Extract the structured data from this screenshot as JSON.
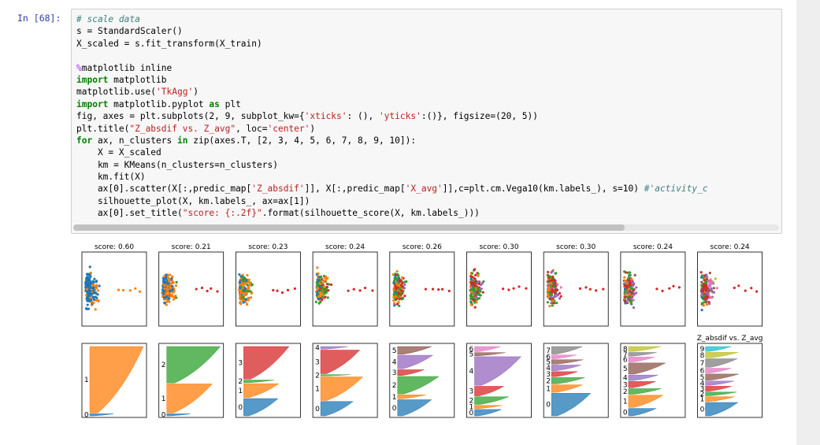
{
  "cell": {
    "prompt": "In [68]:"
  },
  "code_lines": [
    [
      {
        "t": "# scale data",
        "c": "cm"
      }
    ],
    [
      {
        "t": "s = StandardScaler()",
        "c": ""
      }
    ],
    [
      {
        "t": "X_scaled = s.fit_transform(X_train)",
        "c": ""
      }
    ],
    [
      {
        "t": "",
        "c": ""
      }
    ],
    [
      {
        "t": "%",
        "c": "mg"
      },
      {
        "t": "matplotlib inline",
        "c": ""
      }
    ],
    [
      {
        "t": "import",
        "c": "kw"
      },
      {
        "t": " matplotlib",
        "c": ""
      }
    ],
    [
      {
        "t": "matplotlib.use(",
        "c": ""
      },
      {
        "t": "'TkAgg'",
        "c": "st"
      },
      {
        "t": ")",
        "c": ""
      }
    ],
    [
      {
        "t": "import",
        "c": "kw"
      },
      {
        "t": " matplotlib.pyplot ",
        "c": ""
      },
      {
        "t": "as",
        "c": "kw"
      },
      {
        "t": " plt",
        "c": ""
      }
    ],
    [
      {
        "t": "fig, axes = plt.subplots(2, 9, subplot_kw={",
        "c": ""
      },
      {
        "t": "'xticks'",
        "c": "st"
      },
      {
        "t": ": (), ",
        "c": ""
      },
      {
        "t": "'yticks'",
        "c": "st"
      },
      {
        "t": ":()}, figsize=(20, 5))",
        "c": ""
      }
    ],
    [
      {
        "t": "plt.title(",
        "c": ""
      },
      {
        "t": "\"Z_absdif vs. Z_avg\"",
        "c": "st"
      },
      {
        "t": ", loc=",
        "c": ""
      },
      {
        "t": "'center'",
        "c": "st"
      },
      {
        "t": ")",
        "c": ""
      }
    ],
    [
      {
        "t": "for",
        "c": "kw"
      },
      {
        "t": " ax, n_clusters ",
        "c": ""
      },
      {
        "t": "in",
        "c": "kw"
      },
      {
        "t": " zip(axes.T, [2, 3, 4, 5, 6, 7, 8, 9, 10]):",
        "c": ""
      }
    ],
    [
      {
        "t": "    X = X_scaled",
        "c": ""
      }
    ],
    [
      {
        "t": "    km = KMeans(n_clusters=n_clusters)",
        "c": ""
      }
    ],
    [
      {
        "t": "    km.fit(X)",
        "c": ""
      }
    ],
    [
      {
        "t": "    ax[0].scatter(X[:,predic_map[",
        "c": ""
      },
      {
        "t": "'Z_absdif'",
        "c": "st"
      },
      {
        "t": "]], X[:,predic_map[",
        "c": ""
      },
      {
        "t": "'X_avg'",
        "c": "st"
      },
      {
        "t": "]],c=plt.cm.Vega10(km.labels_), s=10) ",
        "c": ""
      },
      {
        "t": "#'activity_c",
        "c": "cm"
      }
    ],
    [
      {
        "t": "    silhouette_plot(X, km.labels_, ax=ax[1])",
        "c": ""
      }
    ],
    [
      {
        "t": "    ax[0].set_title(",
        "c": ""
      },
      {
        "t": "\"score: {:.2f}\"",
        "c": "st"
      },
      {
        "t": ".format(silhouette_score(X, km.labels_)))",
        "c": ""
      }
    ]
  ],
  "figure": {
    "last_title": "Z_absdif vs. Z_avg",
    "colors": [
      "#1f77b4",
      "#ff7f0e",
      "#2ca02c",
      "#d62728",
      "#9467bd",
      "#8c564b",
      "#e377c2",
      "#7f7f7f",
      "#bcbd22",
      "#17becf"
    ],
    "panels": [
      {
        "n_clusters": 2,
        "score_title": "score: 0.60",
        "order": [
          0,
          1
        ],
        "sizes": [
          3,
          97
        ],
        "labels": [
          "0",
          "1"
        ]
      },
      {
        "n_clusters": 3,
        "score_title": "score: 0.21",
        "order": [
          0,
          1,
          2
        ],
        "sizes": [
          3,
          43,
          54
        ],
        "labels": [
          "0",
          "1",
          "2"
        ]
      },
      {
        "n_clusters": 4,
        "score_title": "score: 0.23",
        "order": [
          0,
          1,
          2,
          3
        ],
        "sizes": [
          26,
          21,
          4,
          49
        ],
        "labels": [
          "0",
          "1",
          "2",
          "3"
        ]
      },
      {
        "n_clusters": 5,
        "score_title": "score: 0.24",
        "order": [
          0,
          1,
          2,
          3,
          4
        ],
        "sizes": [
          22,
          36,
          2,
          36,
          4
        ],
        "labels": [
          "0",
          "1",
          "2",
          "3",
          "4"
        ]
      },
      {
        "n_clusters": 6,
        "score_title": "score: 0.26",
        "order": [
          0,
          1,
          2,
          3,
          4,
          5
        ],
        "sizes": [
          25,
          6,
          27,
          9,
          21,
          12
        ],
        "labels": [
          "0",
          "1",
          "2",
          "3",
          "4",
          "5"
        ]
      },
      {
        "n_clusters": 7,
        "score_title": "score: 0.30",
        "order": [
          0,
          1,
          2,
          3,
          4,
          5,
          6
        ],
        "sizes": [
          10,
          5,
          12,
          15,
          45,
          5,
          8
        ],
        "labels": [
          "0",
          "1",
          "2",
          "3",
          "4",
          "5",
          "6"
        ]
      },
      {
        "n_clusters": 8,
        "score_title": "score: 0.30",
        "order": [
          0,
          1,
          2,
          3,
          4,
          5,
          6,
          7
        ],
        "sizes": [
          36,
          12,
          10,
          8,
          9,
          7,
          6,
          12
        ],
        "labels": [
          "0",
          "1",
          "2",
          "3",
          "4",
          "5",
          "6",
          "7"
        ]
      },
      {
        "n_clusters": 9,
        "score_title": "score: 0.24",
        "order": [
          0,
          1,
          2,
          3,
          4,
          5,
          6,
          7,
          8
        ],
        "sizes": [
          12,
          20,
          9,
          10,
          9,
          18,
          8,
          6,
          8
        ],
        "labels": [
          "0",
          "1",
          "2",
          "3",
          "4",
          "5",
          "6",
          "7",
          "8"
        ]
      },
      {
        "n_clusters": 10,
        "score_title": "score: 0.24",
        "order": [
          0,
          1,
          2,
          3,
          4,
          5,
          6,
          7,
          8,
          9
        ],
        "sizes": [
          22,
          8,
          6,
          8,
          7,
          10,
          8,
          14,
          9,
          8
        ],
        "labels": [
          "0",
          "1",
          "2",
          "3",
          "4",
          "5",
          "6",
          "7",
          "8",
          "9"
        ]
      }
    ]
  }
}
